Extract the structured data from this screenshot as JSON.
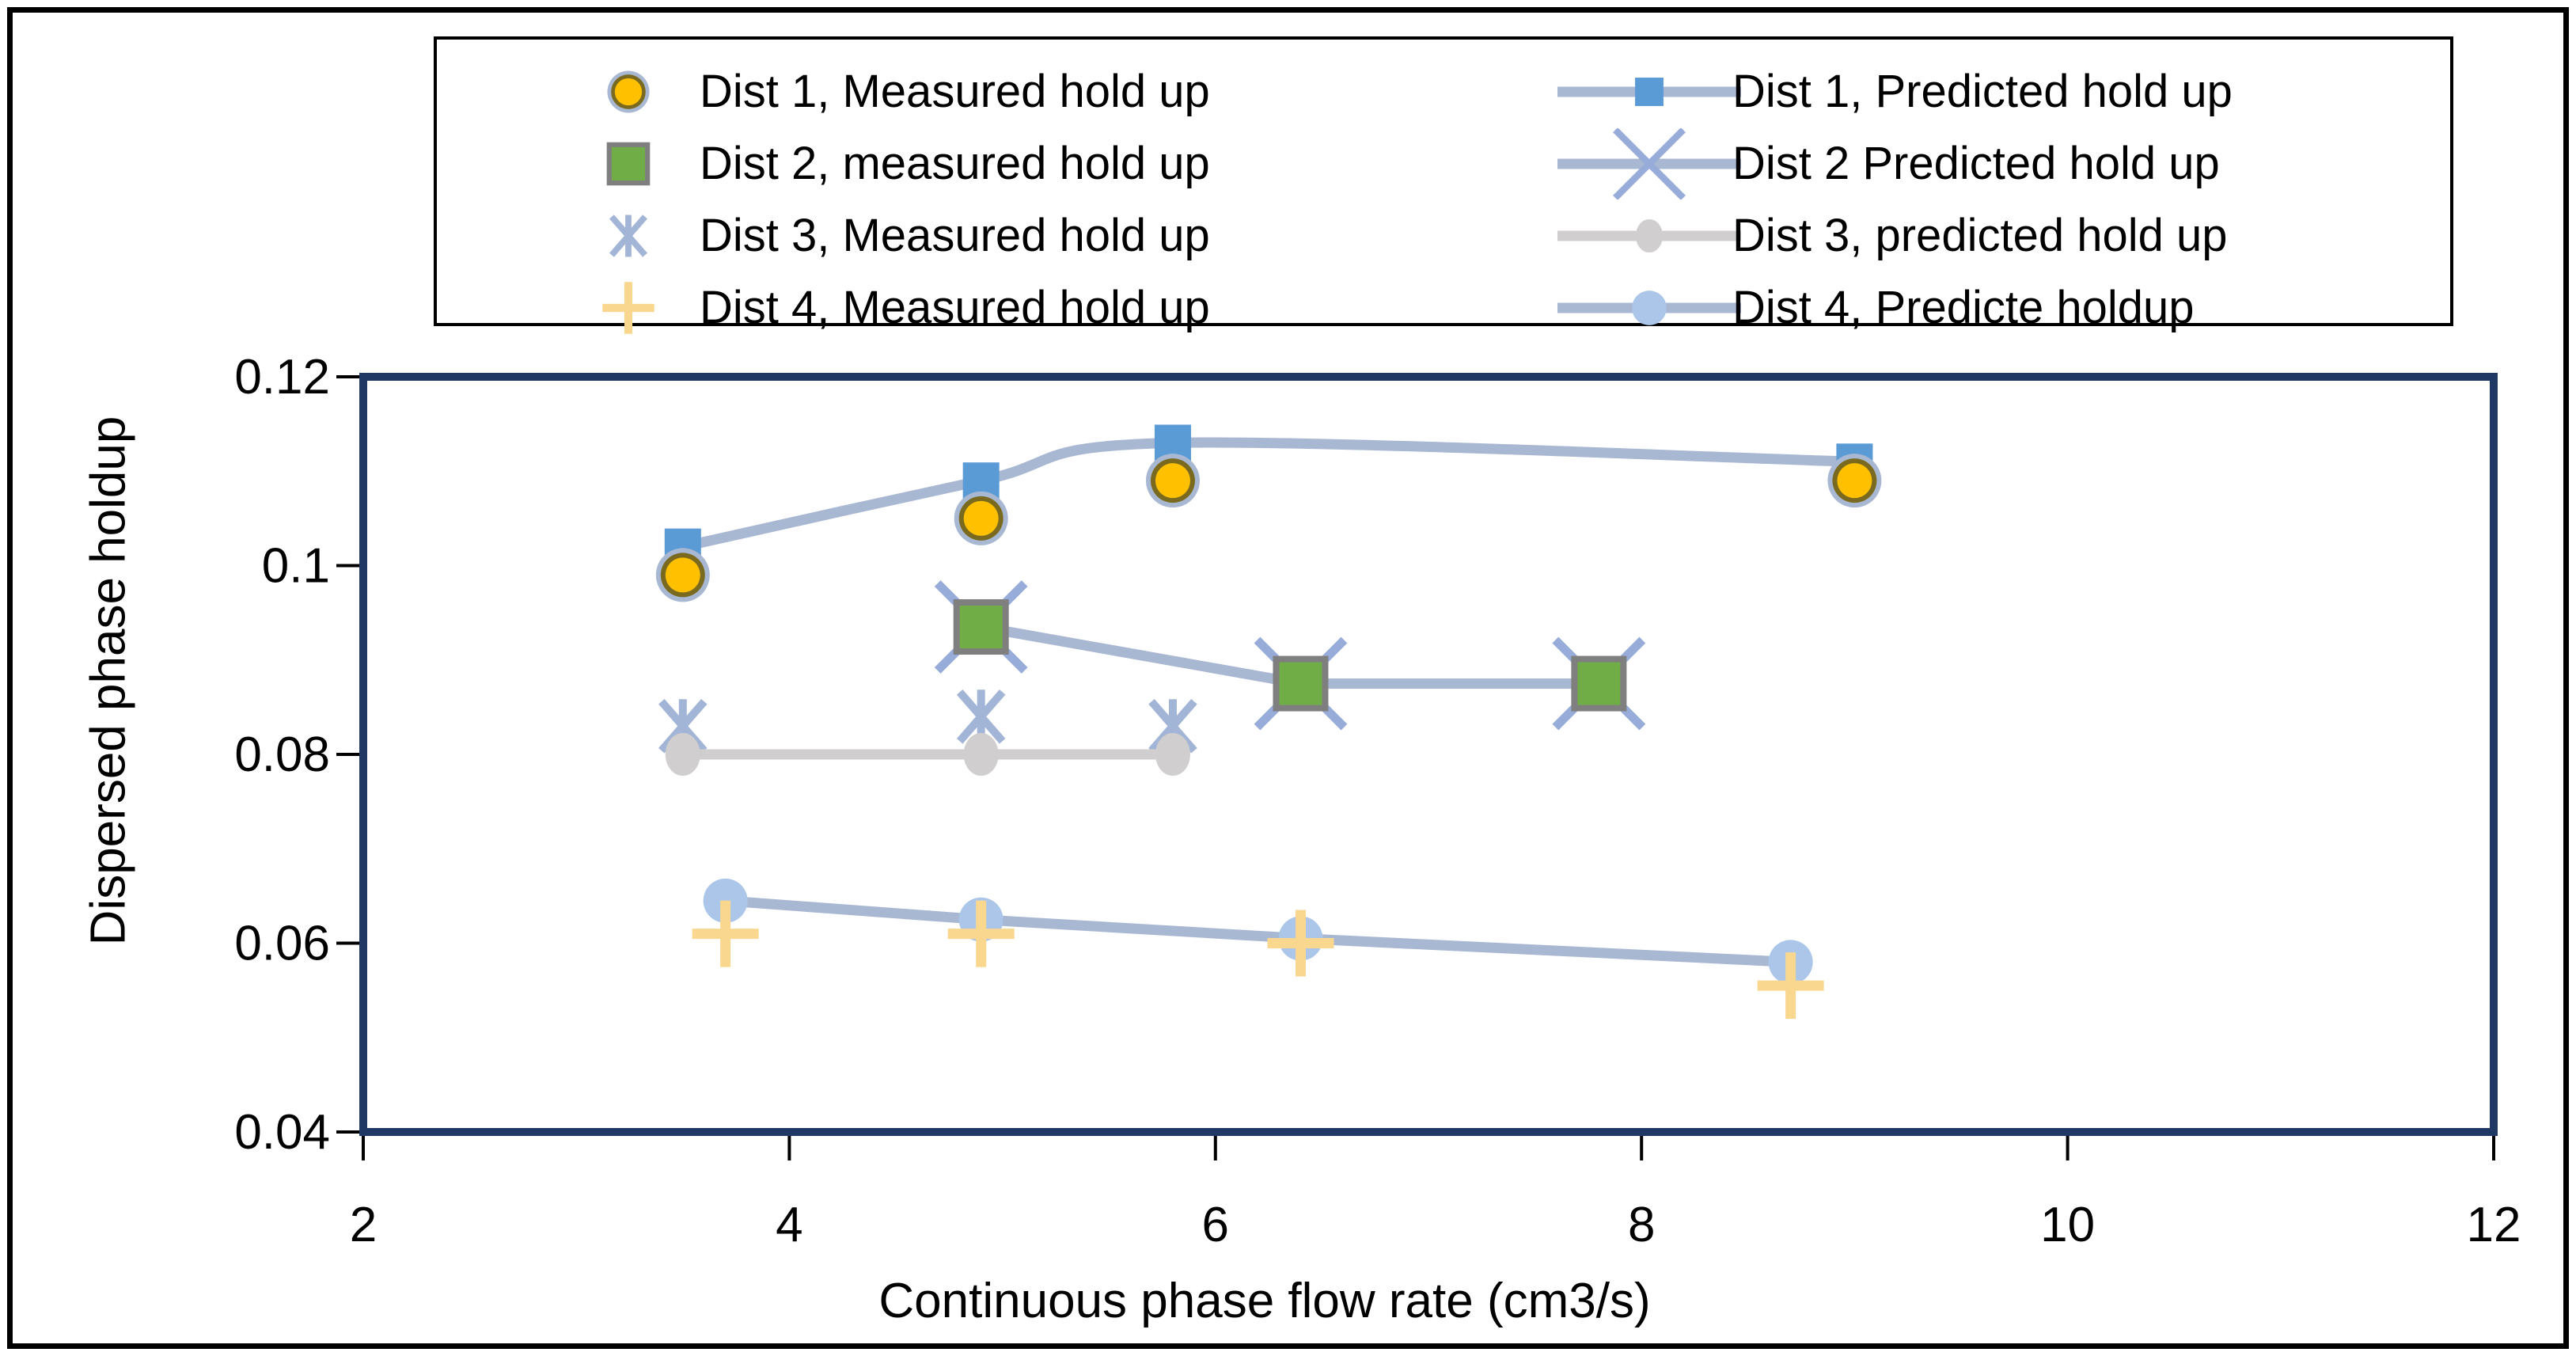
{
  "chart_data": {
    "type": "line",
    "title": "",
    "xlabel": "Continuous phase flow rate (cm3/s)",
    "ylabel": "Dispersed phase holdup",
    "xlim": [
      2,
      12
    ],
    "ylim": [
      0.04,
      0.12
    ],
    "x_ticks": [
      2,
      4,
      6,
      8,
      10,
      12
    ],
    "x_tick_labels": [
      "2",
      "4",
      "6",
      "8",
      "10",
      "12"
    ],
    "y_ticks": [
      0.04,
      0.06,
      0.08,
      0.1,
      0.12
    ],
    "y_tick_labels": [
      "0.04",
      "0.06",
      "0.08",
      "0.1",
      "0.12"
    ],
    "grid": false,
    "legend_position": "top",
    "frame_color": "#203864",
    "series": [
      {
        "name": "Dist 3, Measured hold up",
        "marker": "asterisk",
        "line": false,
        "smooth": false,
        "legend_col": 1,
        "legend_row": 3,
        "x": [
          3.5,
          4.9,
          5.8
        ],
        "y": [
          0.083,
          0.084,
          0.083
        ]
      },
      {
        "name": "Dist 3, predicted hold up",
        "marker": "gray-ellipse",
        "line": true,
        "smooth": false,
        "line_color": "#D0CECE",
        "legend_col": 2,
        "legend_row": 3,
        "x": [
          3.5,
          4.9,
          5.8
        ],
        "y": [
          0.08,
          0.08,
          0.08
        ]
      },
      {
        "name": "Dist 2 Predicted hold up",
        "marker": "x-cross",
        "line": true,
        "smooth": false,
        "legend_col": 2,
        "legend_row": 2,
        "x": [
          4.9,
          6.4,
          7.8
        ],
        "y": [
          0.0935,
          0.0875,
          0.0875
        ]
      },
      {
        "name": "Dist 2, measured hold up",
        "marker": "green-square",
        "line": false,
        "smooth": false,
        "legend_col": 1,
        "legend_row": 2,
        "x": [
          4.9,
          6.4,
          7.8
        ],
        "y": [
          0.0935,
          0.0875,
          0.0875
        ]
      },
      {
        "name": "Dist 1, Predicted hold up",
        "marker": "blue-square",
        "line": true,
        "smooth": true,
        "legend_col": 2,
        "legend_row": 1,
        "x": [
          3.5,
          4.9,
          5.8,
          9.0
        ],
        "y": [
          0.102,
          0.109,
          0.113,
          0.111
        ]
      },
      {
        "name": "Dist 1, Measured hold up",
        "marker": "gold-circle",
        "line": false,
        "smooth": false,
        "legend_col": 1,
        "legend_row": 1,
        "x": [
          3.5,
          4.9,
          5.8,
          9.0
        ],
        "y": [
          0.099,
          0.105,
          0.109,
          0.109
        ]
      },
      {
        "name": "Dist 4, Predicte holdup",
        "marker": "lightblue-circle",
        "line": true,
        "smooth": false,
        "legend_col": 2,
        "legend_row": 4,
        "x": [
          3.7,
          4.9,
          6.4,
          8.7
        ],
        "y": [
          0.0645,
          0.0625,
          0.0605,
          0.058
        ]
      },
      {
        "name": "Dist 4, Measured hold up",
        "marker": "plus",
        "line": false,
        "smooth": false,
        "legend_col": 1,
        "legend_row": 4,
        "x": [
          3.7,
          4.9,
          6.4,
          8.7
        ],
        "y": [
          0.061,
          0.061,
          0.06,
          0.0555
        ]
      }
    ]
  },
  "colors": {
    "frame": "#203864",
    "line_blue": "#A9B8D2",
    "gray": "#D0CECE",
    "gold": "#FFC000",
    "gold_ring": "#7A6A20",
    "halo": "#A9B8D2",
    "blue": "#5B9BD5",
    "green": "#70AD47",
    "green_border": "#7F7F7F",
    "x_marker": "#98ACD9",
    "asterisk": "#A3B5D6",
    "plus": "#FAD78F",
    "lightblue": "#ABC6E9",
    "tick": "#000000"
  }
}
